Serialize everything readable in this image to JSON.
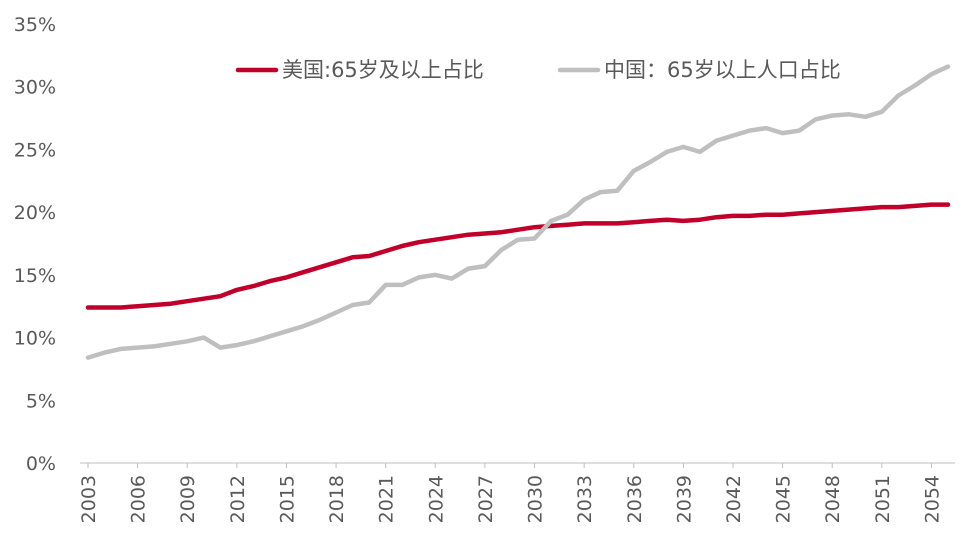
{
  "chart_data": {
    "type": "line",
    "title": "",
    "xlabel": "",
    "ylabel": "",
    "x_start": 2003,
    "x_end": 2055,
    "xlim": [
      2003,
      2055
    ],
    "ylim": [
      0,
      35
    ],
    "grid": false,
    "legend_position": "top-right",
    "x_tick_labels": [
      "2003",
      "2006",
      "2009",
      "2012",
      "2015",
      "2018",
      "2021",
      "2024",
      "2027",
      "2030",
      "2033",
      "2036",
      "2039",
      "2042",
      "2045",
      "2048",
      "2051",
      "2054"
    ],
    "y_tick_labels": [
      "0%",
      "5%",
      "10%",
      "15%",
      "20%",
      "25%",
      "30%",
      "35%"
    ],
    "y_tick_values": [
      0,
      5,
      10,
      15,
      20,
      25,
      30,
      35
    ],
    "series": [
      {
        "name": "美国:65岁及以上占比",
        "color": "#c0002b",
        "values": [
          12.4,
          12.4,
          12.4,
          12.5,
          12.6,
          12.7,
          12.9,
          13.1,
          13.3,
          13.8,
          14.1,
          14.5,
          14.8,
          15.2,
          15.6,
          16.0,
          16.4,
          16.5,
          16.9,
          17.3,
          17.6,
          17.8,
          18.0,
          18.2,
          18.3,
          18.4,
          18.6,
          18.8,
          18.9,
          19.0,
          19.1,
          19.1,
          19.1,
          19.2,
          19.3,
          19.4,
          19.3,
          19.4,
          19.6,
          19.7,
          19.7,
          19.8,
          19.8,
          19.9,
          20.0,
          20.1,
          20.2,
          20.3,
          20.4,
          20.4,
          20.5,
          20.6,
          20.6
        ]
      },
      {
        "name": "中国：65岁以上人口占比",
        "color": "#bfbfbf",
        "values": [
          8.4,
          8.8,
          9.1,
          9.2,
          9.3,
          9.5,
          9.7,
          10.0,
          9.2,
          9.4,
          9.7,
          10.1,
          10.5,
          10.9,
          11.4,
          12.0,
          12.6,
          12.8,
          14.2,
          14.2,
          14.8,
          15.0,
          14.7,
          15.5,
          15.7,
          17.0,
          17.8,
          17.9,
          19.3,
          19.8,
          21.0,
          21.6,
          21.7,
          23.3,
          24.0,
          24.8,
          25.2,
          24.8,
          25.7,
          26.1,
          26.5,
          26.7,
          26.3,
          26.5,
          27.4,
          27.7,
          27.8,
          27.6,
          28.0,
          29.3,
          30.1,
          31.0,
          31.6
        ]
      }
    ]
  }
}
